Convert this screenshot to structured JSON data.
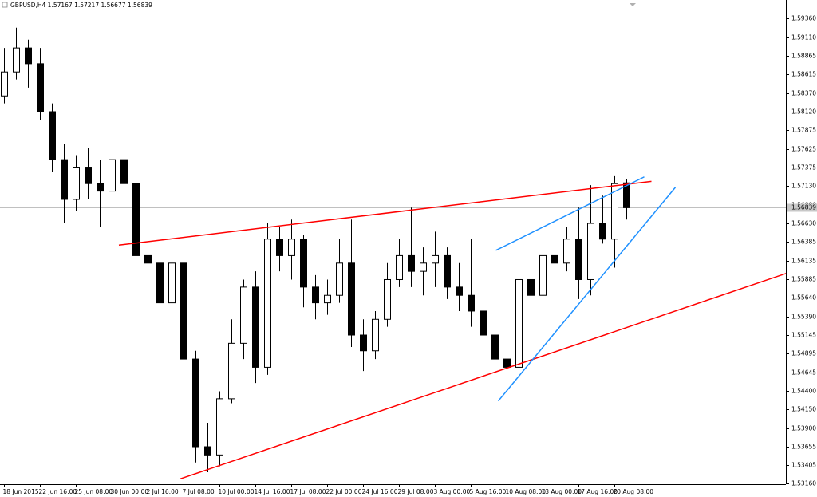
{
  "chart_data": {
    "type": "candlestick",
    "title": "GBPUSD,H4  1.57167 1.57217 1.56677 1.56839",
    "categories": [
      "18 Jun 2015",
      null,
      null,
      "22 Jun 16:00",
      null,
      null,
      "25 Jun 08:00",
      null,
      null,
      "30 Jun 00:00",
      null,
      null,
      "2 Jul 16:00",
      null,
      null,
      "7 Jul 08:00",
      null,
      null,
      "10 Jul 00:00",
      null,
      null,
      "14 Jul 16:00",
      null,
      null,
      "17 Jul 08:00",
      null,
      null,
      "22 Jul 00:00",
      null,
      null,
      "24 Jul 16:00",
      null,
      null,
      "29 Jul 08:00",
      null,
      null,
      "3 Aug 00:00",
      null,
      null,
      "5 Aug 16:00",
      null,
      null,
      "10 Aug 08:00",
      null,
      null,
      "13 Aug 00:00",
      null,
      null,
      "17 Aug 16:00",
      null,
      null,
      "20 Aug 08:00",
      null
    ],
    "open": [
      1.5833,
      1.5865,
      1.5897,
      1.5876,
      1.5812,
      1.5748,
      1.5695,
      1.5738,
      1.5716,
      1.5706,
      1.5748,
      1.5716,
      1.562,
      1.561,
      1.5557,
      1.561,
      1.5482,
      1.5365,
      1.5354,
      1.5429,
      1.5503,
      1.5578,
      1.5471,
      1.5642,
      1.562,
      1.5642,
      1.5578,
      1.5557,
      1.5567,
      1.561,
      1.5514,
      1.5493,
      1.5535,
      1.5588,
      1.562,
      1.5599,
      1.561,
      1.562,
      1.5578,
      1.5567,
      1.5546,
      1.5514,
      1.5482,
      1.5471,
      1.5588,
      1.5567,
      1.562,
      1.561,
      1.5642,
      1.5588,
      1.5663,
      1.5642,
      1.5717
    ],
    "high": [
      1.5897,
      1.5924,
      1.5908,
      1.5897,
      1.5823,
      1.5769,
      1.5754,
      1.5764,
      1.5748,
      1.578,
      1.5769,
      1.5727,
      1.5636,
      1.5642,
      1.5631,
      1.562,
      1.5493,
      1.5397,
      1.5439,
      1.5535,
      1.5588,
      1.5599,
      1.5663,
      1.5658,
      1.5668,
      1.5647,
      1.5594,
      1.5588,
      1.5642,
      1.5668,
      1.5535,
      1.5546,
      1.561,
      1.5642,
      1.5684,
      1.5631,
      1.5652,
      1.5631,
      1.561,
      1.5642,
      1.562,
      1.5546,
      1.5514,
      1.561,
      1.561,
      1.5658,
      1.5642,
      1.5658,
      1.5684,
      1.5714,
      1.57,
      1.5727,
      1.5722
    ],
    "low": [
      1.5823,
      1.5855,
      1.5844,
      1.5801,
      1.5732,
      1.5663,
      1.5679,
      1.5695,
      1.5658,
      1.5684,
      1.5684,
      1.5599,
      1.5594,
      1.5535,
      1.5535,
      1.5461,
      1.5344,
      1.5331,
      1.5339,
      1.5423,
      1.5482,
      1.545,
      1.5461,
      1.5599,
      1.5588,
      1.5551,
      1.5535,
      1.5541,
      1.5557,
      1.5498,
      1.5466,
      1.5482,
      1.5525,
      1.5578,
      1.5578,
      1.5567,
      1.5578,
      1.5562,
      1.5546,
      1.5525,
      1.5482,
      1.5461,
      1.5423,
      1.5455,
      1.5557,
      1.5557,
      1.5594,
      1.5599,
      1.5562,
      1.5567,
      1.5636,
      1.5604,
      1.5668
    ],
    "close": [
      1.5865,
      1.5897,
      1.5876,
      1.5812,
      1.5748,
      1.5695,
      1.5738,
      1.5716,
      1.5706,
      1.5748,
      1.5716,
      1.562,
      1.561,
      1.5557,
      1.561,
      1.5482,
      1.5365,
      1.5354,
      1.5429,
      1.5503,
      1.5578,
      1.5471,
      1.5642,
      1.562,
      1.5642,
      1.5578,
      1.5557,
      1.5567,
      1.561,
      1.5514,
      1.5493,
      1.5535,
      1.5588,
      1.562,
      1.5599,
      1.561,
      1.562,
      1.5578,
      1.5567,
      1.5546,
      1.5514,
      1.5482,
      1.5471,
      1.5588,
      1.5567,
      1.562,
      1.561,
      1.5642,
      1.5588,
      1.5663,
      1.5642,
      1.5716,
      1.56839
    ],
    "up_color": "#ffffff",
    "down_color": "#000000",
    "ylim": [
      1.5315,
      1.5961
    ],
    "yticks": [
      {
        "value": 1.5936,
        "label": "1.59360"
      },
      {
        "value": 1.5911,
        "label": "1.59110"
      },
      1.58865,
      1.58615,
      {
        "value": 1.5837,
        "label": "1.58370"
      },
      {
        "value": 1.5812,
        "label": "1.58120"
      },
      1.57875,
      1.57625,
      1.57375,
      {
        "value": 1.5713,
        "label": "1.57130"
      },
      {
        "value": 1.5688,
        "label": "1.56880"
      },
      {
        "value": 1.5663,
        "label": "1.56630"
      },
      1.56385,
      1.56135,
      1.55885,
      {
        "value": 1.5564,
        "label": "1.55640"
      },
      {
        "value": 1.5539,
        "label": "1.55390"
      },
      1.55145,
      1.54895,
      1.54645,
      {
        "value": 1.544,
        "label": "1.54400"
      },
      {
        "value": 1.5415,
        "label": "1.54150"
      },
      {
        "value": 1.539,
        "label": "1.53900"
      },
      1.53655,
      1.53405,
      {
        "value": 1.5316,
        "label": "1.53160"
      }
    ],
    "last_price": 1.56839,
    "trendlines": [
      {
        "color": "#ff0000",
        "x": [
          9.6,
          54.1
        ],
        "y": [
          1.5634,
          1.5719
        ]
      },
      {
        "color": "#ff0000",
        "x": [
          14.7,
          65.5
        ],
        "y": [
          1.5322,
          1.5597
        ]
      },
      {
        "color": "#1e90ff",
        "x": [
          41.1,
          53.5
        ],
        "y": [
          1.5627,
          1.5725
        ]
      },
      {
        "color": "#1e90ff",
        "x": [
          41.3,
          56.1
        ],
        "y": [
          1.5426,
          1.5711
        ]
      }
    ]
  }
}
